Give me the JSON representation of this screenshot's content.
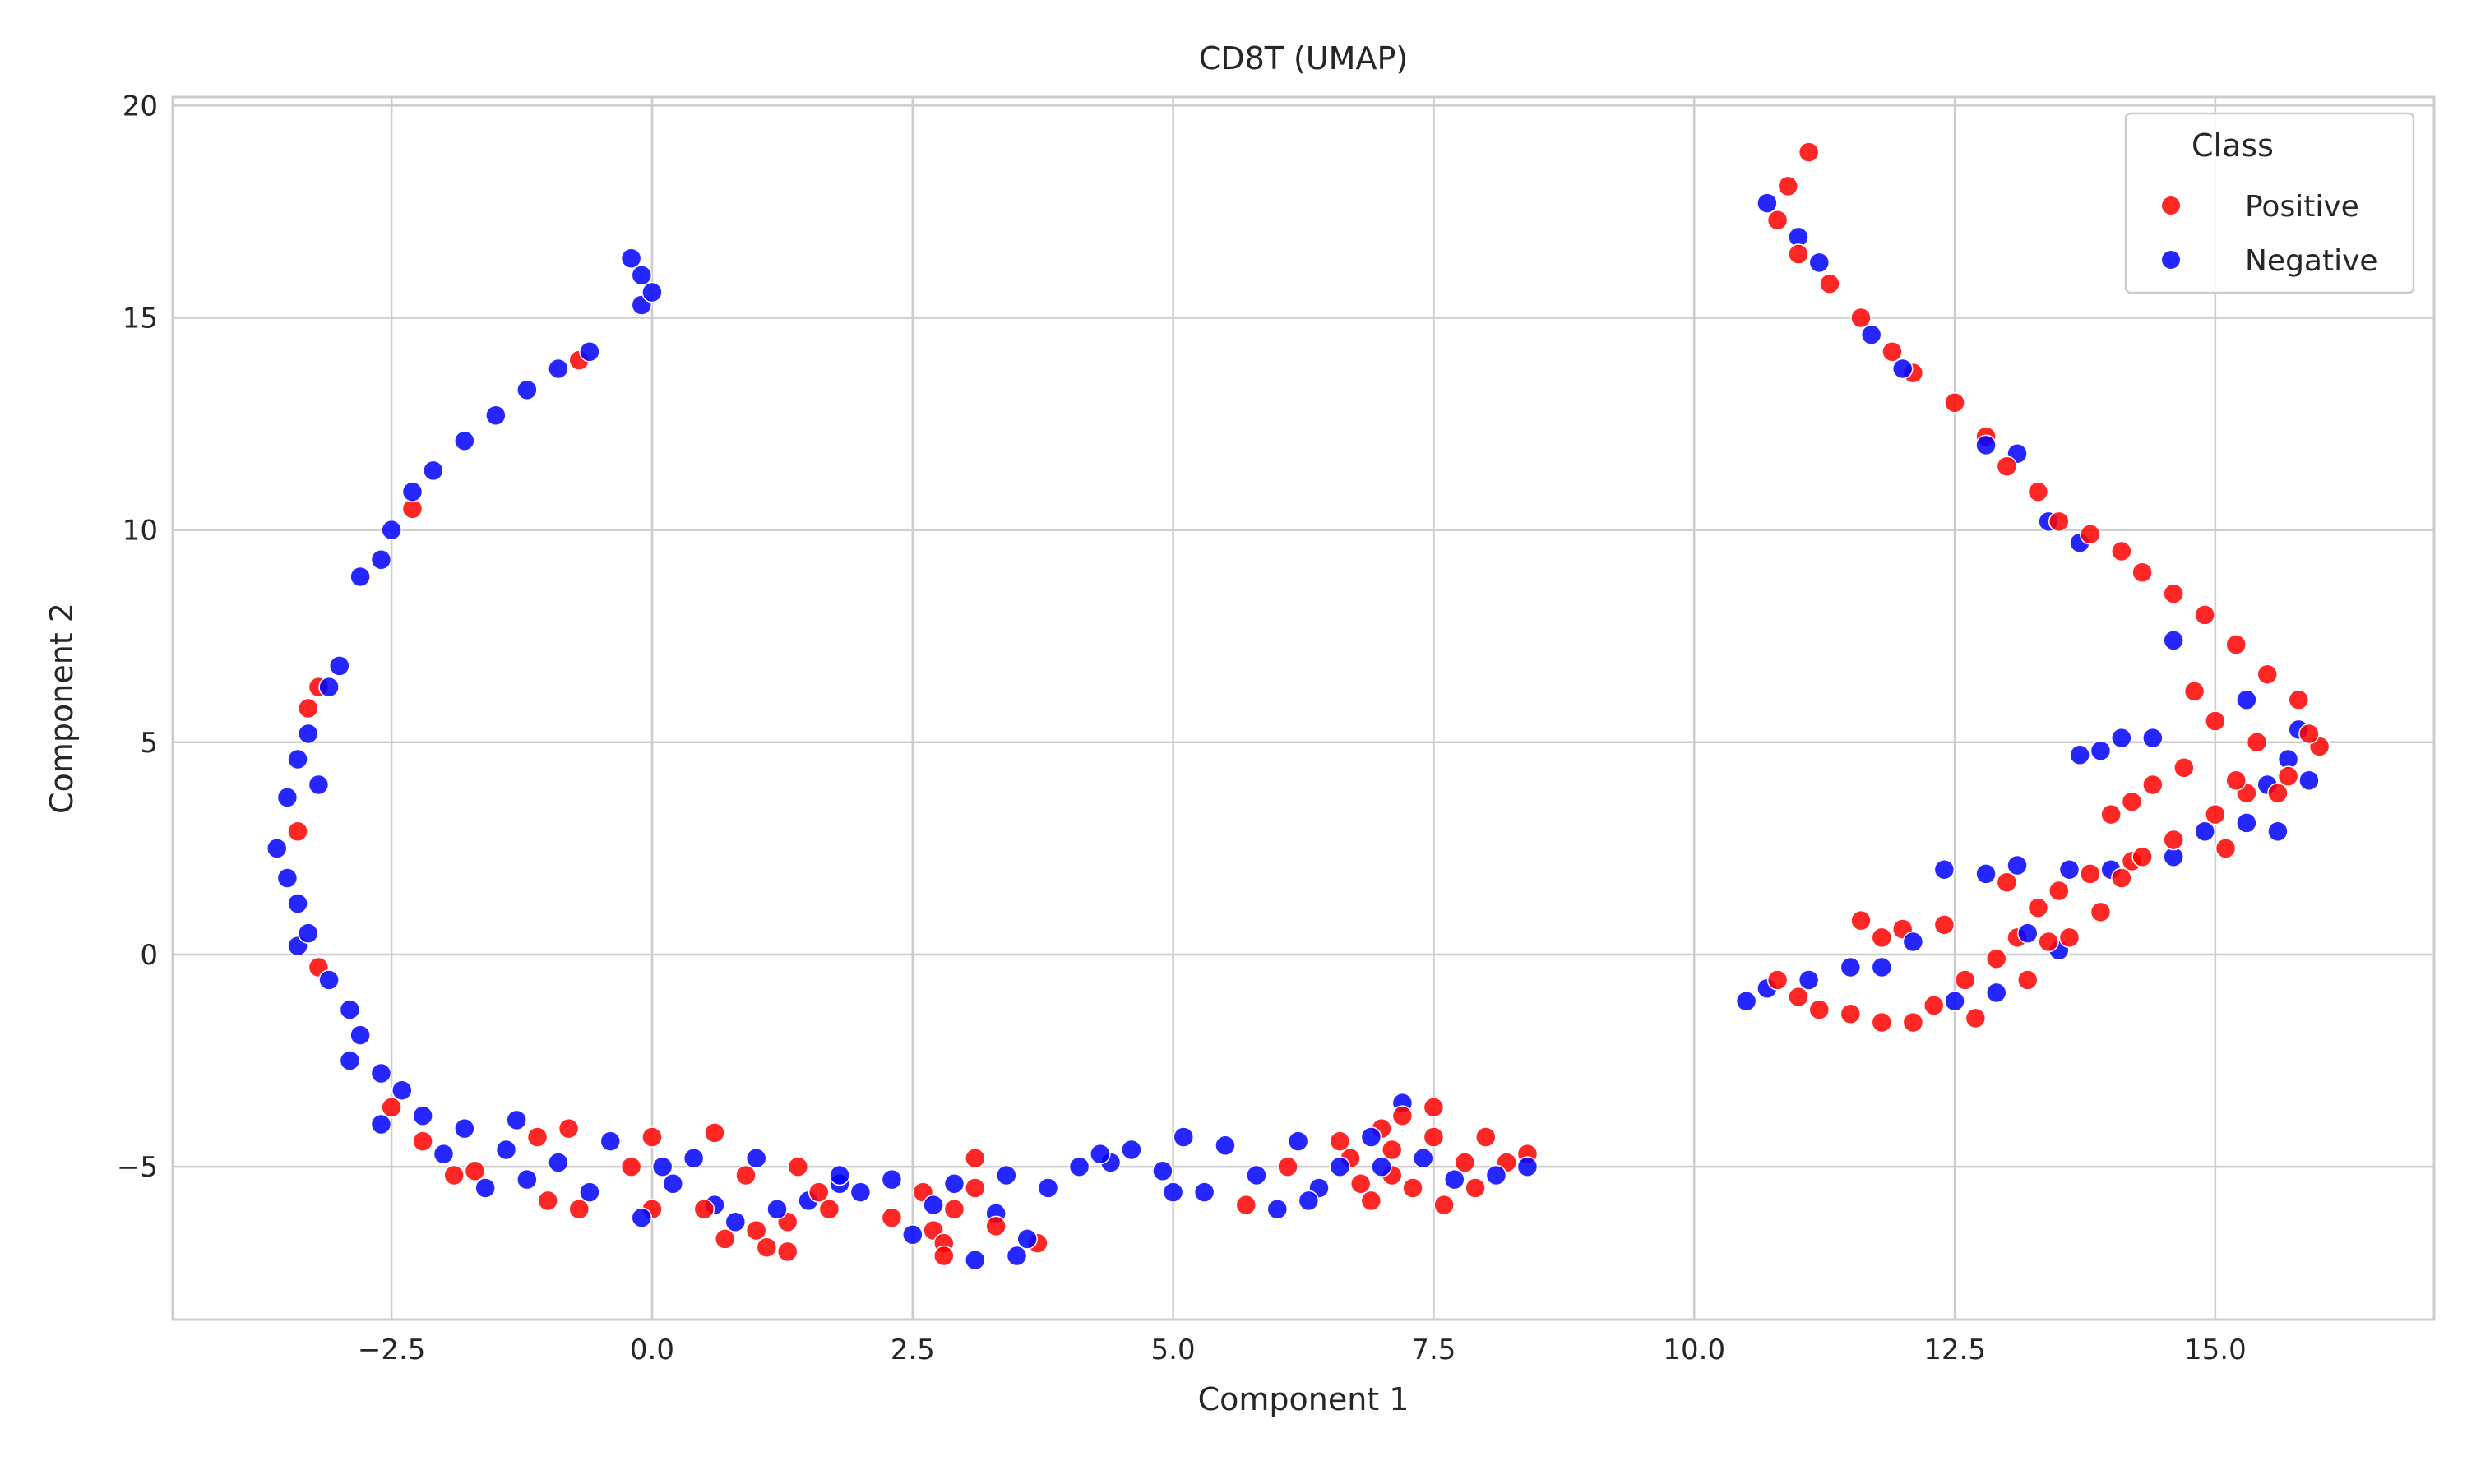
{
  "chart_data": {
    "type": "scatter",
    "title": "CD8T (UMAP)",
    "xlabel": "Component 1",
    "ylabel": "Component 2",
    "xlim": [
      -4.6,
      17.1
    ],
    "ylim": [
      -8.6,
      20.2
    ],
    "xticks": [
      -2.5,
      0.0,
      2.5,
      5.0,
      7.5,
      10.0,
      12.5,
      15.0
    ],
    "xtick_labels": [
      "−2.5",
      "0.0",
      "2.5",
      "5.0",
      "7.5",
      "10.0",
      "12.5",
      "15.0"
    ],
    "yticks": [
      -5,
      0,
      5,
      10,
      15,
      20
    ],
    "ytick_labels": [
      "−5",
      "0",
      "5",
      "10",
      "15",
      "20"
    ],
    "grid": true,
    "legend": {
      "title": "Class",
      "placement": "upper-right",
      "entries": [
        {
          "label": "Positive",
          "color": "#ff0000"
        },
        {
          "label": "Negative",
          "color": "#0000ff"
        }
      ]
    },
    "series": [
      {
        "name": "Positive",
        "color": "#ff0000",
        "points": [
          [
            -0.7,
            14.0
          ],
          [
            -2.3,
            10.5
          ],
          [
            -3.2,
            6.3
          ],
          [
            -3.3,
            5.8
          ],
          [
            -3.4,
            2.9
          ],
          [
            -3.2,
            -0.3
          ],
          [
            -2.5,
            -3.6
          ],
          [
            -2.2,
            -4.4
          ],
          [
            -1.9,
            -5.2
          ],
          [
            -1.7,
            -5.1
          ],
          [
            -1.1,
            -4.3
          ],
          [
            -1.0,
            -5.8
          ],
          [
            -0.8,
            -4.1
          ],
          [
            -0.7,
            -6.0
          ],
          [
            -0.2,
            -5.0
          ],
          [
            0.0,
            -4.3
          ],
          [
            0.0,
            -6.0
          ],
          [
            0.5,
            -6.0
          ],
          [
            0.6,
            -4.2
          ],
          [
            0.7,
            -6.7
          ],
          [
            0.9,
            -5.2
          ],
          [
            1.0,
            -6.5
          ],
          [
            1.1,
            -6.9
          ],
          [
            1.3,
            -6.3
          ],
          [
            1.3,
            -7.0
          ],
          [
            1.4,
            -5.0
          ],
          [
            1.6,
            -5.6
          ],
          [
            1.7,
            -6.0
          ],
          [
            2.3,
            -6.2
          ],
          [
            2.6,
            -5.6
          ],
          [
            2.7,
            -6.5
          ],
          [
            2.8,
            -7.1
          ],
          [
            2.8,
            -6.8
          ],
          [
            2.9,
            -6.0
          ],
          [
            3.1,
            -4.8
          ],
          [
            3.1,
            -5.5
          ],
          [
            3.3,
            -6.4
          ],
          [
            3.7,
            -6.8
          ],
          [
            5.7,
            -5.9
          ],
          [
            6.1,
            -5.0
          ],
          [
            6.6,
            -4.4
          ],
          [
            6.7,
            -4.8
          ],
          [
            6.8,
            -5.4
          ],
          [
            6.9,
            -5.8
          ],
          [
            7.0,
            -4.1
          ],
          [
            7.1,
            -4.6
          ],
          [
            7.1,
            -5.2
          ],
          [
            7.2,
            -3.8
          ],
          [
            7.3,
            -5.5
          ],
          [
            7.5,
            -3.6
          ],
          [
            7.5,
            -4.3
          ],
          [
            7.6,
            -5.9
          ],
          [
            7.8,
            -4.9
          ],
          [
            7.9,
            -5.5
          ],
          [
            8.0,
            -4.3
          ],
          [
            8.2,
            -4.9
          ],
          [
            8.4,
            -4.7
          ],
          [
            11.1,
            18.9
          ],
          [
            10.9,
            18.1
          ],
          [
            10.8,
            17.3
          ],
          [
            11.0,
            16.5
          ],
          [
            11.3,
            15.8
          ],
          [
            11.6,
            15.0
          ],
          [
            11.9,
            14.2
          ],
          [
            12.1,
            13.7
          ],
          [
            12.5,
            13.0
          ],
          [
            12.8,
            12.2
          ],
          [
            13.0,
            11.5
          ],
          [
            13.3,
            10.9
          ],
          [
            13.5,
            10.2
          ],
          [
            13.8,
            9.9
          ],
          [
            14.1,
            9.5
          ],
          [
            14.3,
            9.0
          ],
          [
            14.6,
            8.5
          ],
          [
            14.9,
            8.0
          ],
          [
            15.2,
            7.3
          ],
          [
            15.5,
            6.6
          ],
          [
            15.8,
            6.0
          ],
          [
            15.9,
            5.2
          ],
          [
            16.0,
            4.9
          ],
          [
            15.7,
            4.2
          ],
          [
            15.3,
            3.8
          ],
          [
            15.0,
            3.3
          ],
          [
            14.7,
            4.4
          ],
          [
            14.4,
            4.0
          ],
          [
            14.2,
            3.6
          ],
          [
            14.0,
            3.3
          ],
          [
            14.6,
            2.7
          ],
          [
            14.2,
            2.2
          ],
          [
            13.8,
            1.9
          ],
          [
            13.5,
            1.5
          ],
          [
            13.3,
            1.1
          ],
          [
            13.1,
            0.4
          ],
          [
            12.9,
            -0.1
          ],
          [
            12.6,
            -0.6
          ],
          [
            12.3,
            -1.2
          ],
          [
            12.1,
            -1.6
          ],
          [
            11.8,
            -1.6
          ],
          [
            11.5,
            -1.4
          ],
          [
            11.2,
            -1.3
          ],
          [
            11.0,
            -1.0
          ],
          [
            10.8,
            -0.6
          ],
          [
            11.6,
            0.8
          ],
          [
            11.8,
            0.4
          ],
          [
            12.0,
            0.6
          ],
          [
            12.4,
            0.7
          ],
          [
            13.0,
            1.7
          ],
          [
            13.6,
            0.4
          ],
          [
            15.0,
            5.5
          ],
          [
            15.4,
            5.0
          ],
          [
            14.8,
            6.2
          ],
          [
            15.2,
            4.1
          ],
          [
            15.6,
            3.8
          ],
          [
            15.1,
            2.5
          ],
          [
            14.3,
            2.3
          ],
          [
            13.9,
            1.0
          ],
          [
            13.2,
            -0.6
          ],
          [
            12.7,
            -1.5
          ],
          [
            13.4,
            0.3
          ],
          [
            14.1,
            1.8
          ]
        ]
      },
      {
        "name": "Negative",
        "color": "#0000ff",
        "points": [
          [
            -0.2,
            16.4
          ],
          [
            -0.1,
            16.0
          ],
          [
            0.0,
            15.6
          ],
          [
            -0.1,
            15.3
          ],
          [
            -0.6,
            14.2
          ],
          [
            -0.9,
            13.8
          ],
          [
            -1.2,
            13.3
          ],
          [
            -1.5,
            12.7
          ],
          [
            -1.8,
            12.1
          ],
          [
            -2.1,
            11.4
          ],
          [
            -2.3,
            10.9
          ],
          [
            -2.5,
            10.0
          ],
          [
            -2.6,
            9.3
          ],
          [
            -2.8,
            8.9
          ],
          [
            -3.0,
            6.8
          ],
          [
            -3.1,
            6.3
          ],
          [
            -3.3,
            5.2
          ],
          [
            -3.4,
            4.6
          ],
          [
            -3.5,
            3.7
          ],
          [
            -3.6,
            2.5
          ],
          [
            -3.5,
            1.8
          ],
          [
            -3.4,
            1.2
          ],
          [
            -3.3,
            0.5
          ],
          [
            -3.1,
            -0.6
          ],
          [
            -2.9,
            -1.3
          ],
          [
            -2.8,
            -1.9
          ],
          [
            -2.6,
            -2.8
          ],
          [
            -2.4,
            -3.2
          ],
          [
            -2.2,
            -3.8
          ],
          [
            -2.0,
            -4.7
          ],
          [
            -1.8,
            -4.1
          ],
          [
            -1.6,
            -5.5
          ],
          [
            -1.4,
            -4.6
          ],
          [
            -1.2,
            -5.3
          ],
          [
            -0.9,
            -4.9
          ],
          [
            -0.6,
            -5.6
          ],
          [
            -0.4,
            -4.4
          ],
          [
            -0.1,
            -6.2
          ],
          [
            0.2,
            -5.4
          ],
          [
            0.4,
            -4.8
          ],
          [
            0.6,
            -5.9
          ],
          [
            0.8,
            -6.3
          ],
          [
            1.0,
            -4.8
          ],
          [
            1.2,
            -6.0
          ],
          [
            1.5,
            -5.8
          ],
          [
            1.8,
            -5.2
          ],
          [
            2.0,
            -5.6
          ],
          [
            2.3,
            -5.3
          ],
          [
            2.5,
            -6.6
          ],
          [
            2.7,
            -5.9
          ],
          [
            2.9,
            -5.4
          ],
          [
            3.1,
            -7.2
          ],
          [
            3.3,
            -6.1
          ],
          [
            3.4,
            -5.2
          ],
          [
            3.6,
            -6.7
          ],
          [
            3.8,
            -5.5
          ],
          [
            4.1,
            -5.0
          ],
          [
            4.4,
            -4.9
          ],
          [
            4.6,
            -4.6
          ],
          [
            4.9,
            -5.1
          ],
          [
            5.1,
            -4.3
          ],
          [
            5.3,
            -5.6
          ],
          [
            5.5,
            -4.5
          ],
          [
            5.8,
            -5.2
          ],
          [
            6.0,
            -6.0
          ],
          [
            6.2,
            -4.4
          ],
          [
            6.4,
            -5.5
          ],
          [
            6.6,
            -5.0
          ],
          [
            6.9,
            -4.3
          ],
          [
            7.2,
            -3.5
          ],
          [
            7.4,
            -4.8
          ],
          [
            7.7,
            -5.3
          ],
          [
            8.1,
            -5.2
          ],
          [
            8.4,
            -5.0
          ],
          [
            10.7,
            17.7
          ],
          [
            11.0,
            16.9
          ],
          [
            11.2,
            16.3
          ],
          [
            11.7,
            14.6
          ],
          [
            12.0,
            13.8
          ],
          [
            12.8,
            12.0
          ],
          [
            13.1,
            11.8
          ],
          [
            13.4,
            10.2
          ],
          [
            13.7,
            9.7
          ],
          [
            14.6,
            7.4
          ],
          [
            15.3,
            6.0
          ],
          [
            15.8,
            5.3
          ],
          [
            15.5,
            4.0
          ],
          [
            15.3,
            3.1
          ],
          [
            14.9,
            2.9
          ],
          [
            14.4,
            5.1
          ],
          [
            14.1,
            5.1
          ],
          [
            13.9,
            4.8
          ],
          [
            13.7,
            4.7
          ],
          [
            14.0,
            2.0
          ],
          [
            13.6,
            2.0
          ],
          [
            13.1,
            2.1
          ],
          [
            12.8,
            1.9
          ],
          [
            12.4,
            2.0
          ],
          [
            12.1,
            0.3
          ],
          [
            11.8,
            -0.3
          ],
          [
            11.5,
            -0.3
          ],
          [
            11.1,
            -0.6
          ],
          [
            10.7,
            -0.8
          ],
          [
            10.5,
            -1.1
          ],
          [
            12.5,
            -1.1
          ],
          [
            14.6,
            2.3
          ],
          [
            15.6,
            2.9
          ],
          [
            15.7,
            4.6
          ],
          [
            13.5,
            0.1
          ],
          [
            12.9,
            -0.9
          ],
          [
            15.9,
            4.1
          ],
          [
            13.2,
            0.5
          ],
          [
            -3.2,
            4.0
          ],
          [
            -3.4,
            0.2
          ],
          [
            -2.9,
            -2.5
          ],
          [
            -2.6,
            -4.0
          ],
          [
            -1.3,
            -3.9
          ],
          [
            0.1,
            -5.0
          ],
          [
            1.8,
            -5.4
          ],
          [
            3.5,
            -7.1
          ],
          [
            4.3,
            -4.7
          ],
          [
            5.0,
            -5.6
          ],
          [
            6.3,
            -5.8
          ],
          [
            7.0,
            -5.0
          ]
        ]
      }
    ]
  }
}
